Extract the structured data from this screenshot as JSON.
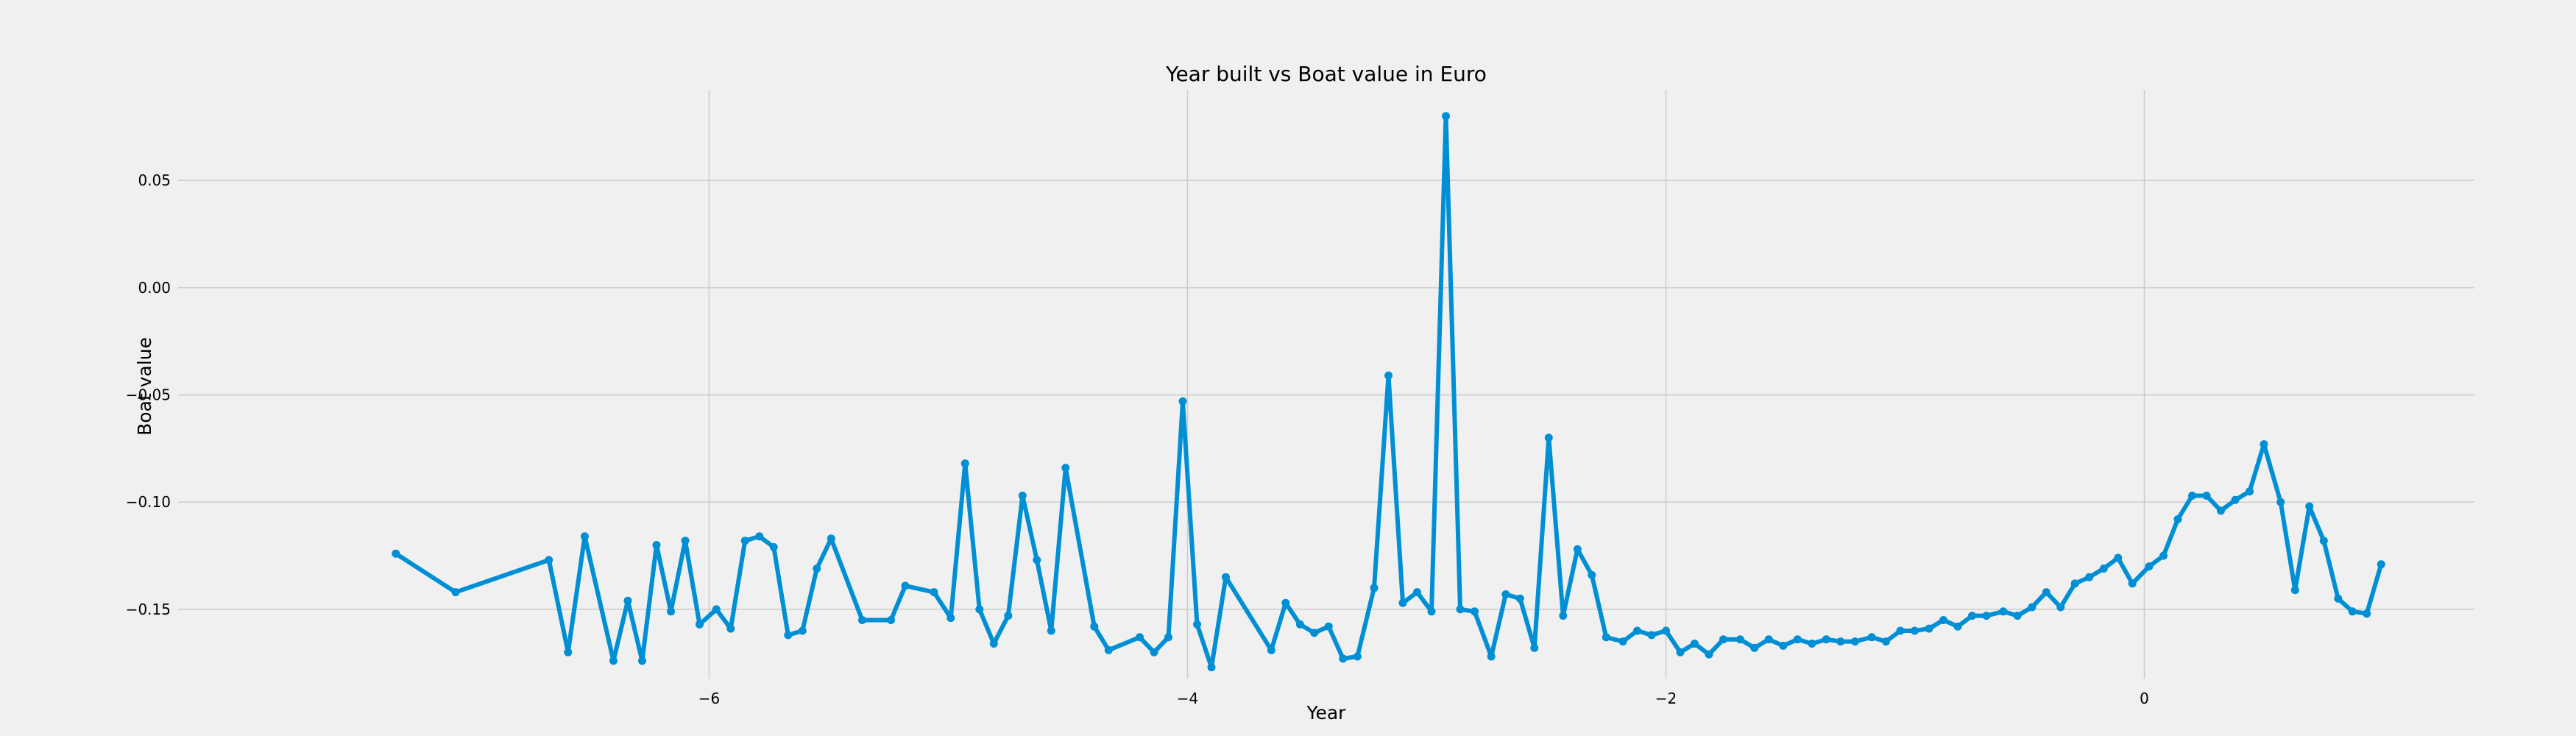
{
  "chart_data": {
    "type": "line",
    "title": "Year built vs Boat value in Euro",
    "xlabel": "Year",
    "ylabel": "Boat value",
    "xlim": [
      -8.22,
      1.38
    ],
    "ylim": [
      -0.1823,
      0.0923
    ],
    "grid": true,
    "legend": "none",
    "xticks": [
      -6,
      -4,
      -2,
      0
    ],
    "xtick_labels": [
      "−6",
      "−4",
      "−2",
      "0"
    ],
    "yticks": [
      -0.15,
      -0.1,
      -0.05,
      0.0,
      0.05
    ],
    "ytick_labels": [
      "−0.15",
      "−0.10",
      "−0.05",
      "0.00",
      "0.05"
    ],
    "series": [
      {
        "name": "Boat value",
        "color": "#008fd5",
        "x": [
          -7.31,
          -7.06,
          -6.67,
          -6.59,
          -6.52,
          -6.4,
          -6.34,
          -6.28,
          -6.22,
          -6.16,
          -6.1,
          -6.04,
          -5.97,
          -5.91,
          -5.85,
          -5.79,
          -5.73,
          -5.67,
          -5.61,
          -5.55,
          -5.49,
          -5.36,
          -5.24,
          -5.18,
          -5.06,
          -4.99,
          -4.93,
          -4.87,
          -4.81,
          -4.75,
          -4.69,
          -4.63,
          -4.57,
          -4.51,
          -4.39,
          -4.33,
          -4.2,
          -4.14,
          -4.08,
          -4.02,
          -3.96,
          -3.9,
          -3.84,
          -3.65,
          -3.59,
          -3.53,
          -3.47,
          -3.41,
          -3.35,
          -3.29,
          -3.22,
          -3.16,
          -3.1,
          -3.04,
          -2.98,
          -2.92,
          -2.86,
          -2.8,
          -2.73,
          -2.67,
          -2.61,
          -2.55,
          -2.49,
          -2.43,
          -2.37,
          -2.31,
          -2.25,
          -2.18,
          -2.12,
          -2.06,
          -2.0,
          -1.94,
          -1.88,
          -1.82,
          -1.76,
          -1.69,
          -1.63,
          -1.57,
          -1.51,
          -1.45,
          -1.39,
          -1.33,
          -1.27,
          -1.21,
          -1.14,
          -1.08,
          -1.02,
          -0.96,
          -0.9,
          -0.84,
          -0.78,
          -0.72,
          -0.66,
          -0.59,
          -0.53,
          -0.47,
          -0.41,
          -0.35,
          -0.29,
          -0.23,
          -0.17,
          -0.11,
          -0.05,
          0.02,
          0.08,
          0.14,
          0.2,
          0.26,
          0.32,
          0.38,
          0.44,
          0.5,
          0.57,
          0.63,
          0.69,
          0.75,
          0.81,
          0.87,
          0.93,
          0.99
        ],
        "y": [
          -0.124,
          -0.142,
          -0.127,
          -0.17,
          -0.116,
          -0.174,
          -0.146,
          -0.174,
          -0.12,
          -0.151,
          -0.118,
          -0.157,
          -0.15,
          -0.159,
          -0.118,
          -0.116,
          -0.121,
          -0.162,
          -0.16,
          -0.131,
          -0.117,
          -0.155,
          -0.155,
          -0.139,
          -0.142,
          -0.154,
          -0.082,
          -0.15,
          -0.166,
          -0.153,
          -0.097,
          -0.127,
          -0.16,
          -0.084,
          -0.158,
          -0.169,
          -0.163,
          -0.17,
          -0.163,
          -0.053,
          -0.157,
          -0.177,
          -0.135,
          -0.169,
          -0.147,
          -0.157,
          -0.161,
          -0.158,
          -0.173,
          -0.172,
          -0.14,
          -0.041,
          -0.147,
          -0.142,
          -0.151,
          0.08,
          -0.15,
          -0.151,
          -0.172,
          -0.143,
          -0.145,
          -0.168,
          -0.07,
          -0.153,
          -0.122,
          -0.134,
          -0.163,
          -0.165,
          -0.16,
          -0.162,
          -0.16,
          -0.17,
          -0.166,
          -0.171,
          -0.164,
          -0.164,
          -0.168,
          -0.164,
          -0.167,
          -0.164,
          -0.166,
          -0.164,
          -0.165,
          -0.165,
          -0.163,
          -0.165,
          -0.16,
          -0.16,
          -0.159,
          -0.155,
          -0.158,
          -0.153,
          -0.153,
          -0.151,
          -0.153,
          -0.149,
          -0.142,
          -0.149,
          -0.138,
          -0.135,
          -0.131,
          -0.126,
          -0.138,
          -0.13,
          -0.125,
          -0.108,
          -0.097,
          -0.097,
          -0.104,
          -0.099,
          -0.095,
          -0.073,
          -0.1,
          -0.141,
          -0.102,
          -0.118,
          -0.145,
          -0.151,
          -0.152,
          -0.129
        ]
      }
    ]
  }
}
